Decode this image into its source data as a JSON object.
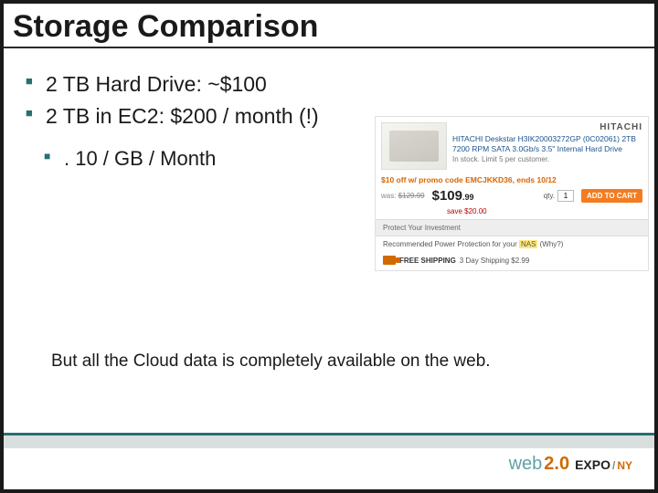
{
  "title": "Storage Comparison",
  "bullets": [
    "2 TB Hard Drive:  ~$100",
    "2 TB in EC2: $200 / month (!)"
  ],
  "sub_bullets": [
    ". 10 / GB / Month"
  ],
  "bottom_text": "But all the Cloud data is completely available on the web.",
  "product": {
    "brand": "HITACHI",
    "title": "HITACHI Deskstar H3IK20003272GP (0C02061) 2TB 7200 RPM SATA 3.0Gb/s 3.5\" Internal Hard Drive",
    "sub": "In stock. Limit 5 per customer.",
    "promo": "$10 off w/ promo code EMCJKKD36, ends 10/12",
    "old_price_label": "was:",
    "old_price": "$129.99",
    "price": "$109",
    "price_cents": ".99",
    "save": "save $20.00",
    "qty_label": "qty.",
    "qty_value": "1",
    "add_label": "ADD TO CART",
    "grey_band": "Protect  Your Investment",
    "rec_prefix": "Recommended Power Protection for your ",
    "rec_highlight": "NAS",
    "rec_suffix": "  (Why?)",
    "ship_free": "FREE SHIPPING",
    "ship_rest": "  3 Day Shipping $2.99"
  },
  "logo": {
    "web": "web",
    "two": "2.0",
    "expo": "EXPO",
    "slash": "/",
    "ny": "NY"
  },
  "colors": {
    "accent_teal": "#2a6f6f",
    "accent_orange": "#d06a00",
    "bg": "#ffffff"
  }
}
